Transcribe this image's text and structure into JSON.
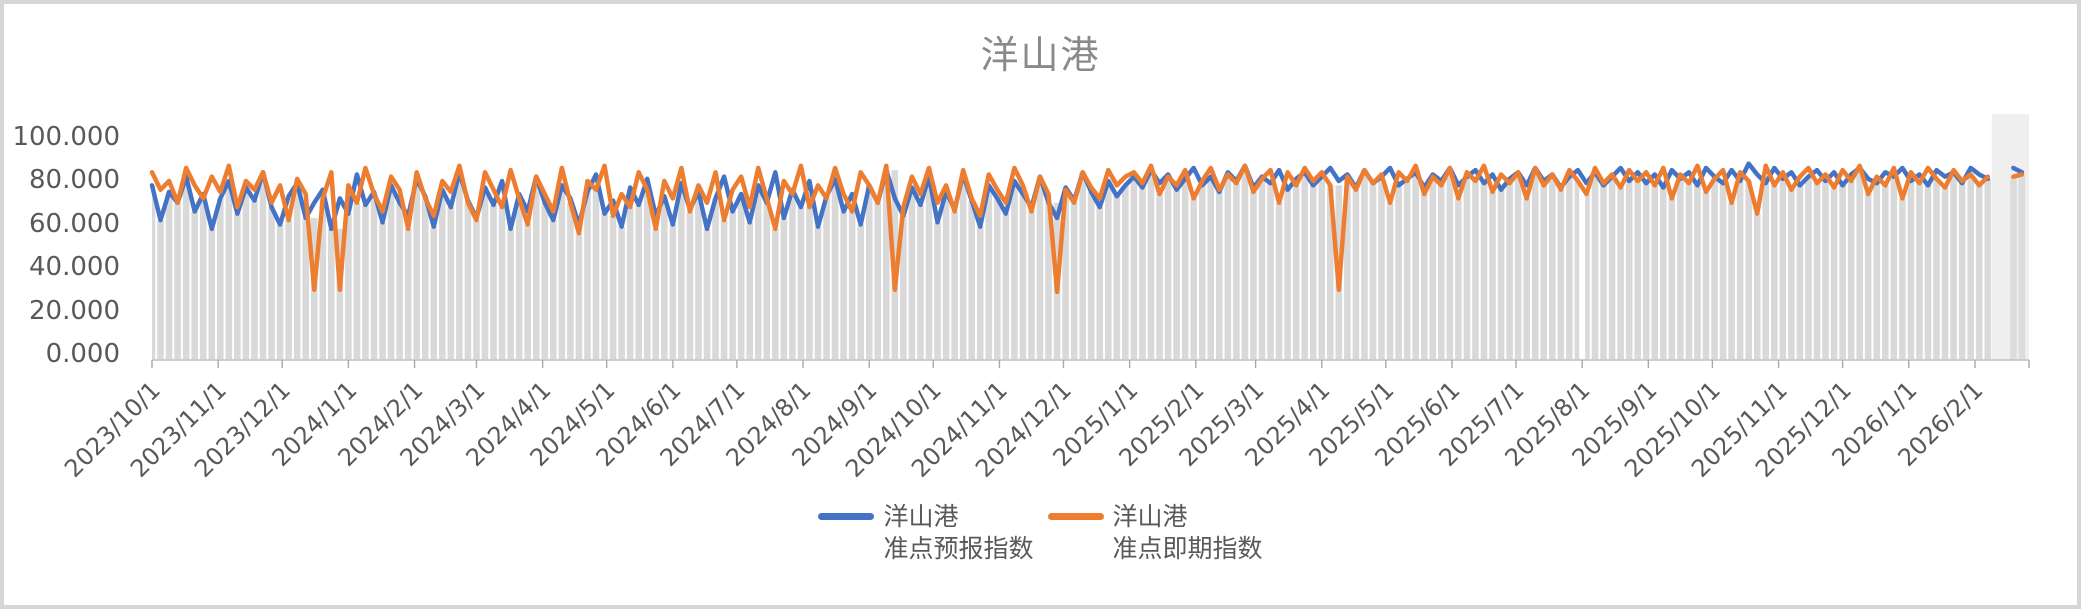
{
  "title": {
    "text": "洋山港",
    "color": "#8a8a8a"
  },
  "legend": [
    {
      "line1": "洋山港",
      "line2": "准点预报指数",
      "color": "#4472C4"
    },
    {
      "line1": "洋山港",
      "line2": "准点即期指数",
      "color": "#ED7D31"
    }
  ],
  "colors": {
    "series_forecast": "#4472C4",
    "series_spot": "#ED7D31",
    "gray_bars": "#d9d9d9",
    "future_band": "#efefef",
    "axis_line": "#bfbfbf",
    "tick_mark": "#a8a8a8",
    "axis_text": "#595959",
    "frame_border": "#d6d6d6"
  },
  "chart_data": {
    "type": "line",
    "title": "洋山港",
    "ylim": [
      0,
      100
    ],
    "y_tick_step": 20,
    "y_tick_labels": [
      "100.000",
      "80.000",
      "60.000",
      "40.000",
      "20.000",
      "0.000"
    ],
    "y_tick_values": [
      100,
      80,
      60,
      40,
      20,
      0
    ],
    "x_tick_labels": [
      "2023/10/1",
      "2023/11/1",
      "2023/12/1",
      "2024/1/1",
      "2024/2/1",
      "2024/3/1",
      "2024/4/1",
      "2024/5/1",
      "2024/6/1",
      "2024/7/1",
      "2024/8/1",
      "2024/9/1",
      "2024/10/1",
      "2024/11/1",
      "2024/12/1",
      "2025/1/1",
      "2025/2/1",
      "2025/3/1",
      "2025/4/1",
      "2025/5/1",
      "2025/6/1",
      "2025/7/1",
      "2025/8/1",
      "2025/9/1",
      "2025/10/1",
      "2025/11/1",
      "2025/12/1",
      "2026/1/1",
      "2026/2/1"
    ],
    "start_date": "2023-10-01",
    "interval_days": 4,
    "grid": "vertical-white-stripes-over-gray-bars",
    "legend_position": "bottom-center",
    "missing_bar_date": "2025-08-01",
    "background_band": {
      "description": "gray bars from 0 up to lower envelope of the two lines; lighter band after last data",
      "gray": "#d9d9d9",
      "light": "#efefef"
    },
    "series": [
      {
        "name": "洋山港 准点预报指数",
        "color": "#4472C4",
        "values": [
          78,
          62,
          75,
          70,
          82,
          66,
          74,
          58,
          72,
          80,
          65,
          77,
          71,
          84,
          68,
          60,
          73,
          79,
          63,
          70,
          76,
          58,
          72,
          65,
          83,
          69,
          75,
          61,
          78,
          70,
          64,
          81,
          73,
          59,
          76,
          68,
          84,
          71,
          63,
          77,
          69,
          80,
          58,
          74,
          66,
          82,
          70,
          62,
          78,
          72,
          60,
          75,
          83,
          65,
          71,
          59,
          77,
          69,
          81,
          64,
          73,
          60,
          79,
          67,
          75,
          58,
          72,
          82,
          66,
          74,
          61,
          78,
          70,
          84,
          63,
          76,
          68,
          80,
          59,
          73,
          81,
          66,
          74,
          60,
          78,
          70,
          85,
          72,
          64,
          77,
          69,
          82,
          61,
          75,
          67,
          83,
          71,
          59,
          78,
          72,
          65,
          80,
          74,
          68,
          82,
          70,
          63,
          77,
          71,
          84,
          75,
          68,
          80,
          73,
          78,
          82,
          77,
          85,
          79,
          83,
          76,
          81,
          86,
          78,
          82,
          75,
          84,
          80,
          87,
          77,
          82,
          79,
          85,
          76,
          81,
          84,
          78,
          82,
          86,
          80,
          83,
          77,
          85,
          79,
          82,
          86,
          78,
          81,
          84,
          77,
          83,
          80,
          86,
          78,
          82,
          85,
          79,
          83,
          76,
          81,
          84,
          78,
          86,
          80,
          83,
          77,
          82,
          85,
          79,
          84,
          78,
          82,
          86,
          80,
          84,
          79,
          83,
          77,
          85,
          81,
          84,
          78,
          86,
          82,
          79,
          85,
          80,
          88,
          83,
          79,
          86,
          81,
          84,
          78,
          82,
          85,
          80,
          84,
          78,
          83,
          86,
          81,
          79,
          84,
          82,
          86,
          80,
          83,
          78,
          85,
          82,
          84,
          79,
          86,
          83,
          81,
          null,
          null,
          86,
          84
        ]
      },
      {
        "name": "洋山港 准点即期指数",
        "color": "#ED7D31",
        "values": [
          84,
          76,
          80,
          70,
          86,
          78,
          72,
          82,
          75,
          87,
          68,
          80,
          76,
          84,
          70,
          78,
          62,
          81,
          74,
          30,
          72,
          84,
          30,
          78,
          70,
          86,
          74,
          66,
          82,
          76,
          58,
          84,
          72,
          64,
          80,
          75,
          87,
          70,
          62,
          84,
          76,
          68,
          85,
          72,
          60,
          82,
          74,
          66,
          86,
          70,
          56,
          80,
          76,
          87,
          64,
          74,
          68,
          84,
          76,
          58,
          80,
          72,
          86,
          66,
          78,
          70,
          84,
          62,
          76,
          82,
          68,
          86,
          72,
          58,
          80,
          74,
          87,
          68,
          78,
          72,
          86,
          74,
          66,
          84,
          78,
          70,
          87,
          30,
          68,
          82,
          74,
          86,
          70,
          78,
          66,
          85,
          72,
          64,
          83,
          76,
          70,
          86,
          78,
          66,
          82,
          74,
          29,
          76,
          70,
          84,
          77,
          72,
          85,
          78,
          82,
          84,
          79,
          87,
          74,
          82,
          78,
          85,
          72,
          80,
          86,
          76,
          83,
          79,
          87,
          75,
          81,
          85,
          70,
          84,
          78,
          86,
          80,
          84,
          78,
          30,
          82,
          76,
          85,
          79,
          83,
          70,
          84,
          80,
          87,
          74,
          82,
          78,
          86,
          72,
          84,
          80,
          87,
          75,
          83,
          79,
          84,
          72,
          86,
          78,
          83,
          76,
          85,
          80,
          74,
          86,
          79,
          83,
          77,
          85,
          80,
          84,
          78,
          86,
          72,
          83,
          79,
          87,
          75,
          81,
          85,
          70,
          84,
          80,
          65,
          87,
          78,
          84,
          76,
          82,
          86,
          79,
          83,
          77,
          85,
          80,
          87,
          74,
          82,
          78,
          86,
          72,
          84,
          79,
          86,
          81,
          77,
          85,
          80,
          83,
          78,
          82,
          null,
          null,
          82,
          83
        ]
      }
    ]
  }
}
